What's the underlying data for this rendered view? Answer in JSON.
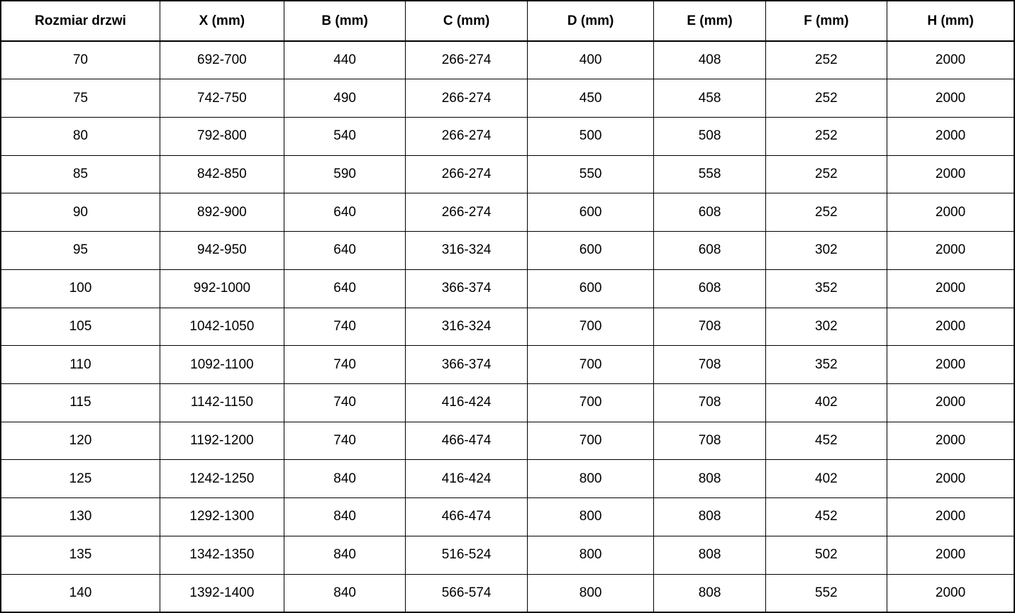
{
  "table": {
    "title": "door-size-specification-table",
    "text_color": "#000000",
    "border_color": "#000000",
    "background_color": "#ffffff",
    "headers": [
      "Rozmiar drzwi",
      "X (mm)",
      "B (mm)",
      "C (mm)",
      "D (mm)",
      "E (mm)",
      "F (mm)",
      "H (mm)"
    ],
    "rows": [
      [
        "70",
        "692-700",
        "440",
        "266-274",
        "400",
        "408",
        "252",
        "2000"
      ],
      [
        "75",
        "742-750",
        "490",
        "266-274",
        "450",
        "458",
        "252",
        "2000"
      ],
      [
        "80",
        "792-800",
        "540",
        "266-274",
        "500",
        "508",
        "252",
        "2000"
      ],
      [
        "85",
        "842-850",
        "590",
        "266-274",
        "550",
        "558",
        "252",
        "2000"
      ],
      [
        "90",
        "892-900",
        "640",
        "266-274",
        "600",
        "608",
        "252",
        "2000"
      ],
      [
        "95",
        "942-950",
        "640",
        "316-324",
        "600",
        "608",
        "302",
        "2000"
      ],
      [
        "100",
        "992-1000",
        "640",
        "366-374",
        "600",
        "608",
        "352",
        "2000"
      ],
      [
        "105",
        "1042-1050",
        "740",
        "316-324",
        "700",
        "708",
        "302",
        "2000"
      ],
      [
        "110",
        "1092-1100",
        "740",
        "366-374",
        "700",
        "708",
        "352",
        "2000"
      ],
      [
        "115",
        "1142-1150",
        "740",
        "416-424",
        "700",
        "708",
        "402",
        "2000"
      ],
      [
        "120",
        "1192-1200",
        "740",
        "466-474",
        "700",
        "708",
        "452",
        "2000"
      ],
      [
        "125",
        "1242-1250",
        "840",
        "416-424",
        "800",
        "808",
        "402",
        "2000"
      ],
      [
        "130",
        "1292-1300",
        "840",
        "466-474",
        "800",
        "808",
        "452",
        "2000"
      ],
      [
        "135",
        "1342-1350",
        "840",
        "516-524",
        "800",
        "808",
        "502",
        "2000"
      ],
      [
        "140",
        "1392-1400",
        "840",
        "566-574",
        "800",
        "808",
        "552",
        "2000"
      ]
    ]
  }
}
